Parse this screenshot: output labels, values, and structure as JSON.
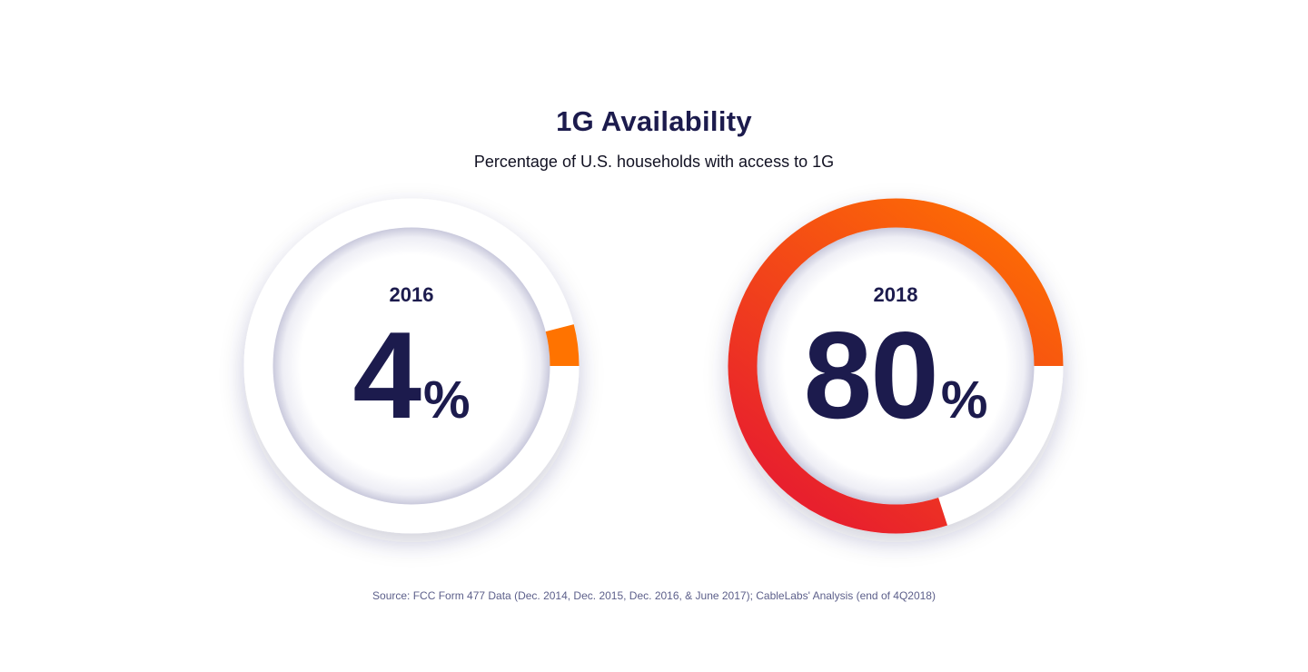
{
  "title": "1G Availability",
  "subtitle": "Percentage of U.S. households with access to 1G",
  "source": "Source: FCC Form 477 Data (Dec. 2014, Dec. 2015, Dec. 2016, & June 2017); CableLabs' Analysis (end of 4Q2018)",
  "colors": {
    "navy": "#1c1b4d",
    "track": "#ffffff",
    "arc_start": "#ff7300",
    "arc_end": "#e8202d"
  },
  "chart_data": [
    {
      "type": "pie",
      "title": "2016",
      "value": 4,
      "value_text": "4",
      "unit": "%"
    },
    {
      "type": "pie",
      "title": "2018",
      "value": 80,
      "value_text": "80",
      "unit": "%"
    }
  ]
}
